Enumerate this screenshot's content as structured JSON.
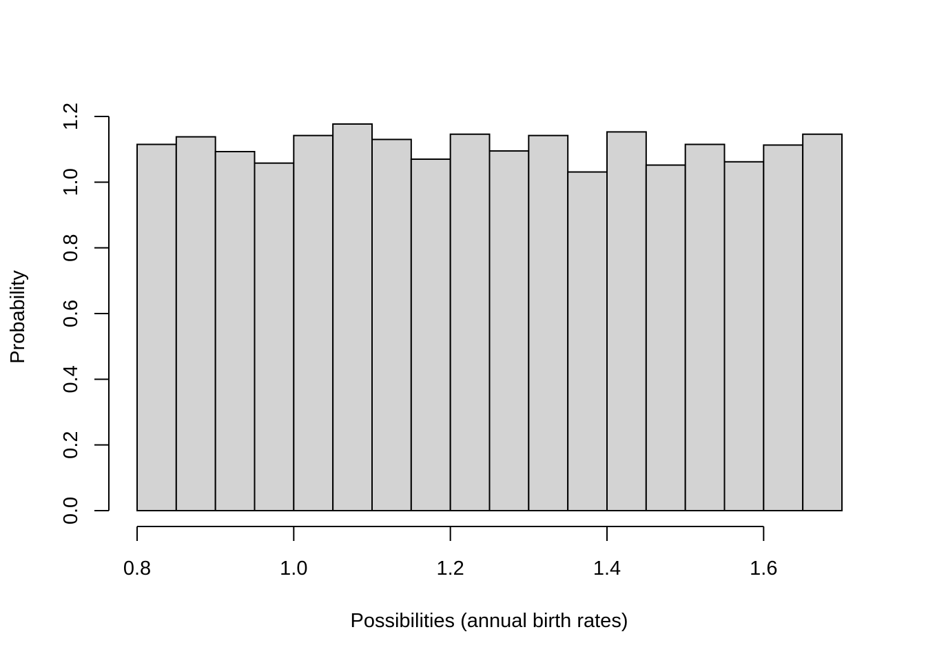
{
  "chart_data": {
    "type": "bar",
    "subtype": "histogram",
    "title": "",
    "xlabel": "Possibilities (annual birth rates)",
    "ylabel": "Probability",
    "bin_edges": [
      0.8,
      0.85,
      0.9,
      0.95,
      1.0,
      1.05,
      1.1,
      1.15,
      1.2,
      1.25,
      1.3,
      1.35,
      1.4,
      1.45,
      1.5,
      1.55,
      1.6,
      1.65,
      1.7
    ],
    "values": [
      1.115,
      1.138,
      1.093,
      1.058,
      1.142,
      1.177,
      1.13,
      1.07,
      1.146,
      1.095,
      1.142,
      1.031,
      1.153,
      1.052,
      1.115,
      1.062,
      1.113,
      1.146
    ],
    "xlim": [
      0.8,
      1.7
    ],
    "ylim": [
      0.0,
      1.2
    ],
    "x_ticks": [
      0.8,
      1.0,
      1.2,
      1.4,
      1.6
    ],
    "x_tick_labels": [
      "0.8",
      "1.0",
      "1.2",
      "1.4",
      "1.6"
    ],
    "y_ticks": [
      0.0,
      0.2,
      0.4,
      0.6,
      0.8,
      1.0,
      1.2
    ],
    "y_tick_labels": [
      "0.0",
      "0.2",
      "0.4",
      "0.6",
      "0.8",
      "1.0",
      "1.2"
    ],
    "grid": false,
    "legend": "none",
    "colors": {
      "bar_fill": "#d3d3d3",
      "bar_stroke": "#000000",
      "axis": "#000000",
      "background": "#ffffff"
    }
  }
}
